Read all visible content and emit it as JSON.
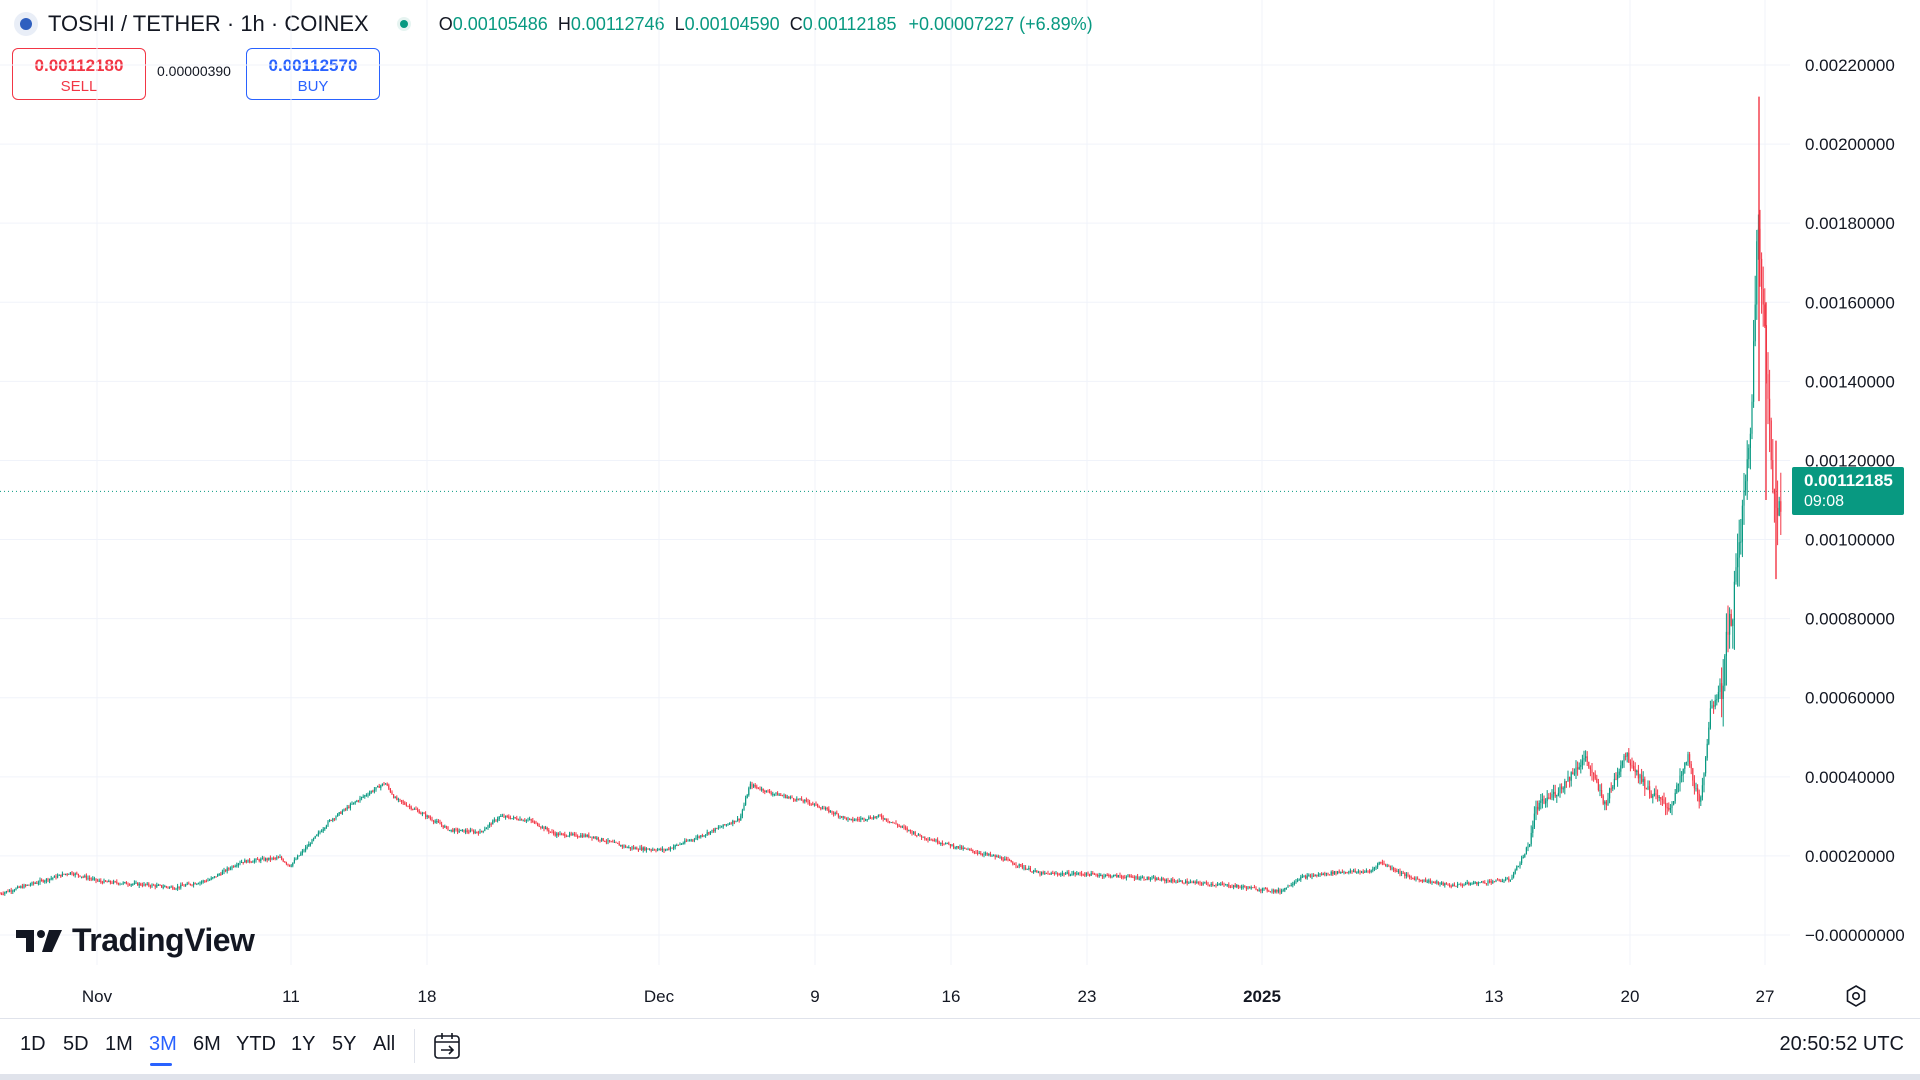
{
  "header": {
    "symbol_title": "TOSHI / TETHER · 1h · COINEX",
    "ohlc": {
      "o_label": "O",
      "o_value": "0.00105486",
      "h_label": "H",
      "h_value": "0.00112746",
      "l_label": "L",
      "l_value": "0.00104590",
      "c_label": "C",
      "c_value": "0.00112185",
      "change": "+0.00007227 (+6.89%)"
    }
  },
  "trade": {
    "sell_price": "0.00112180",
    "sell_label": "SELL",
    "spread": "0.00000390",
    "buy_price": "0.00112570",
    "buy_label": "BUY"
  },
  "price_tag": {
    "price": "0.00112185",
    "countdown": "09:08"
  },
  "watermark": "TradingView",
  "timeframes": [
    "1D",
    "5D",
    "1M",
    "3M",
    "6M",
    "YTD",
    "1Y",
    "5Y",
    "All"
  ],
  "active_timeframe": "3M",
  "clock": "20:50:52 UTC",
  "colors": {
    "up": "#089981",
    "down": "#f23645",
    "accent": "#2962ff"
  },
  "icons": {
    "symbol": "toshi-logo-icon",
    "status": "market-open-dot-icon",
    "calendar": "calendar-icon",
    "settings": "settings-icon",
    "brand": "tradingview-logo-icon"
  },
  "chart_data": {
    "type": "candlestick",
    "interval": "1h",
    "y_ticks": [
      "0.00220000",
      "0.00200000",
      "0.00180000",
      "0.00160000",
      "0.00140000",
      "0.00120000",
      "0.00100000",
      "0.00080000",
      "0.00060000",
      "0.00040000",
      "0.00020000",
      "−0.00000000"
    ],
    "ylim": [
      -0.0,
      0.0022
    ],
    "x_ticks": [
      "Nov",
      "11",
      "18",
      "Dec",
      "9",
      "16",
      "23",
      "2025",
      "13",
      "20",
      "27"
    ],
    "last_price": 0.00112185,
    "price_path": [
      [
        0,
        0.000105
      ],
      [
        30,
        0.000128
      ],
      [
        70,
        0.000158
      ],
      [
        100,
        0.000135
      ],
      [
        140,
        0.000128
      ],
      [
        175,
        0.00012
      ],
      [
        210,
        0.00014
      ],
      [
        240,
        0.000185
      ],
      [
        280,
        0.000195
      ],
      [
        290,
        0.000175
      ],
      [
        310,
        0.000232
      ],
      [
        330,
        0.00029
      ],
      [
        360,
        0.000345
      ],
      [
        385,
        0.000385
      ],
      [
        395,
        0.000345
      ],
      [
        420,
        0.00031
      ],
      [
        450,
        0.000265
      ],
      [
        480,
        0.00026
      ],
      [
        500,
        0.0003
      ],
      [
        530,
        0.00029
      ],
      [
        555,
        0.000255
      ],
      [
        590,
        0.00025
      ],
      [
        630,
        0.00022
      ],
      [
        665,
        0.000215
      ],
      [
        700,
        0.00025
      ],
      [
        740,
        0.000295
      ],
      [
        750,
        0.00038
      ],
      [
        770,
        0.00036
      ],
      [
        810,
        0.000335
      ],
      [
        850,
        0.00029
      ],
      [
        880,
        0.0003
      ],
      [
        920,
        0.00025
      ],
      [
        960,
        0.00022
      ],
      [
        1000,
        0.000195
      ],
      [
        1040,
        0.000155
      ],
      [
        1080,
        0.000155
      ],
      [
        1140,
        0.000145
      ],
      [
        1180,
        0.000135
      ],
      [
        1230,
        0.000125
      ],
      [
        1280,
        0.00011
      ],
      [
        1300,
        0.000145
      ],
      [
        1340,
        0.00016
      ],
      [
        1370,
        0.00016
      ],
      [
        1380,
        0.000185
      ],
      [
        1410,
        0.000145
      ],
      [
        1450,
        0.000125
      ],
      [
        1510,
        0.00014
      ],
      [
        1528,
        0.00022
      ],
      [
        1536,
        0.00032
      ],
      [
        1560,
        0.00037
      ],
      [
        1585,
        0.00045
      ],
      [
        1605,
        0.00033
      ],
      [
        1625,
        0.00046
      ],
      [
        1650,
        0.00036
      ],
      [
        1670,
        0.00032
      ],
      [
        1688,
        0.00045
      ],
      [
        1700,
        0.00032
      ],
      [
        1710,
        0.00056
      ],
      [
        1722,
        0.00064
      ],
      [
        1736,
        0.0009
      ],
      [
        1746,
        0.00115
      ],
      [
        1752,
        0.00135
      ],
      [
        1758,
        0.00185
      ],
      [
        1764,
        0.00155
      ],
      [
        1772,
        0.00115
      ],
      [
        1779,
        0.00109
      ],
      [
        1782,
        0.001122
      ]
    ],
    "spikes": [
      {
        "x_day": 1759,
        "high": 0.00212,
        "low": 0.00135
      },
      {
        "x_day": 1766,
        "high": 0.0016,
        "low": 0.0011
      },
      {
        "x_day": 1776,
        "high": 0.00125,
        "low": 0.0009
      }
    ]
  }
}
